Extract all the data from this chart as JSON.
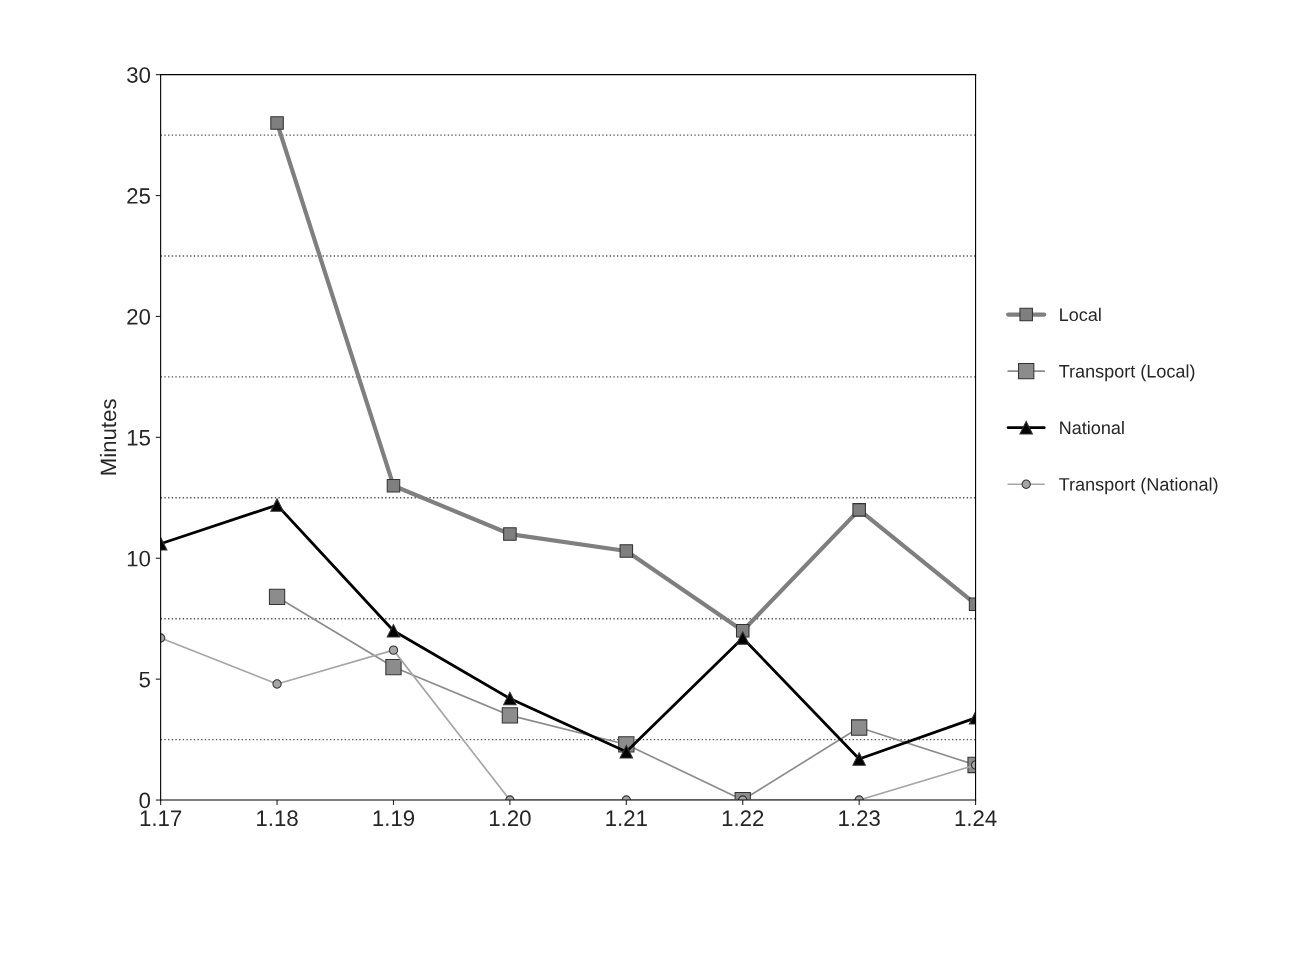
{
  "chart_data": {
    "type": "line",
    "ylabel": "Minutes",
    "categories": [
      "1.17",
      "1.18",
      "1.19",
      "1.20",
      "1.21",
      "1.22",
      "1.23",
      "1.24"
    ],
    "series": [
      {
        "name": "Local",
        "color": "#7f7f7f",
        "marker": "square",
        "values": [
          null,
          28,
          13,
          11,
          10.3,
          7,
          12,
          8.1
        ]
      },
      {
        "name": "Transport (Local)",
        "color": "#8c8c8c",
        "marker": "square",
        "values": [
          null,
          8.4,
          5.5,
          3.5,
          2.3,
          0,
          3,
          1.45
        ]
      },
      {
        "name": "National",
        "color": "#000000",
        "marker": "triangle",
        "values": [
          10.6,
          12.2,
          7,
          4.2,
          2,
          6.7,
          1.7,
          3.4
        ]
      },
      {
        "name": "Transport (National)",
        "color": "#a6a6a6",
        "marker": "circle",
        "values": [
          6.7,
          4.8,
          6.2,
          0,
          0,
          0,
          0,
          1.45
        ]
      }
    ],
    "ylim": [
      0,
      30
    ],
    "yticks": [
      0,
      5,
      10,
      15,
      20,
      25,
      30
    ],
    "ref_lines": [
      {
        "axis": "y",
        "value": 2.5,
        "line_style": "dotted"
      },
      {
        "axis": "y",
        "value": 7.5,
        "line_style": "dotted"
      },
      {
        "axis": "y",
        "value": 12.5,
        "line_style": "dotted"
      },
      {
        "axis": "y",
        "value": 17.5,
        "line_style": "dotted"
      },
      {
        "axis": "y",
        "value": 22.5,
        "line_style": "dotted"
      },
      {
        "axis": "y",
        "value": 27.5,
        "line_style": "dotted"
      }
    ],
    "grid": false,
    "legend": "right",
    "line_style": "solid"
  }
}
